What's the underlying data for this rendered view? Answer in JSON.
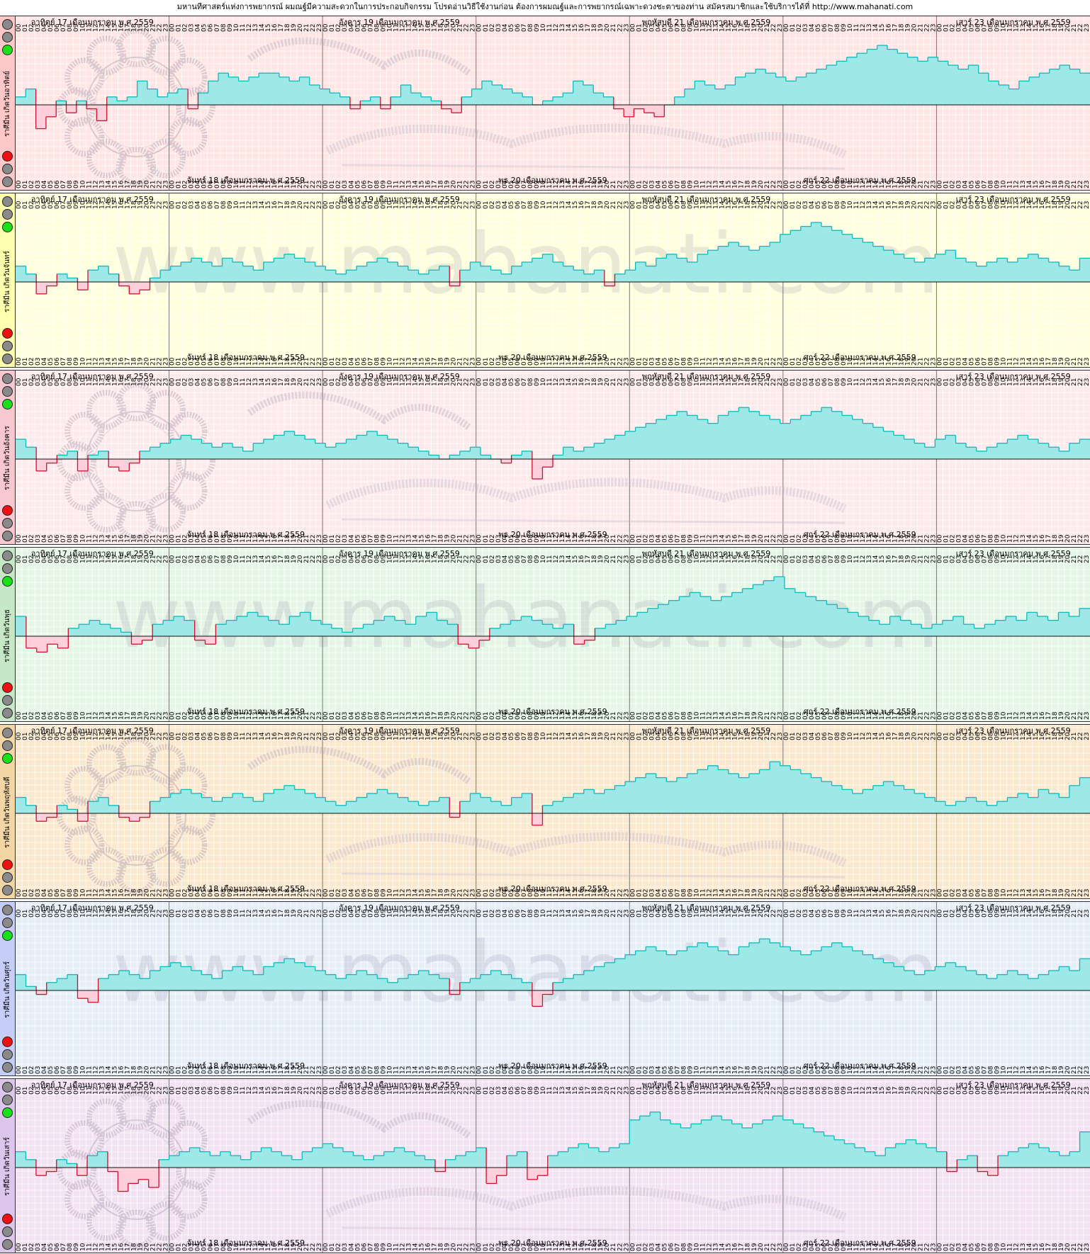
{
  "header": {
    "title": "มหานทีศาสตร์แห่งการพยากรณ์ ผมณฐ์มีความสะดวกในการประกอบกิจกรรม โปรดอ่านวิธีใช้งานก่อน ต้องการผมณฐ์และการพยากรณ์เฉพาะดวงชะตาของท่าน สมัครสมาชิกและใช้บริการได้ที่  http://www.mahanati.com"
  },
  "watermark": {
    "url_text": "www.mahanati.com"
  },
  "hour_labels": [
    "00",
    "01",
    "02",
    "03",
    "04",
    "05",
    "06",
    "07",
    "08",
    "09",
    "10",
    "11",
    "12",
    "13",
    "14",
    "15",
    "16",
    "17",
    "18",
    "19",
    "20",
    "21",
    "22",
    "23"
  ],
  "top_day_labels": [
    {
      "text": "อาทิตย์ 17 เดือนมกราคม พ.ศ.2559",
      "day": 0
    },
    {
      "text": "อังคาร 19 เดือนมกราคม พ.ศ.2559",
      "day": 2
    },
    {
      "text": "พฤหัสบดี 21 เดือนมกราคม พ.ศ.2559",
      "day": 4
    },
    {
      "text": "เสาร์ 23 เดือนมกราคม พ.ศ.2559",
      "day": 6
    }
  ],
  "bottom_day_labels": [
    {
      "text": "จันทร์ 18 เดือนมกราคม พ.ศ.2559",
      "day": 1
    },
    {
      "text": "พุธ 20 เดือนมกราคม พ.ศ.2559",
      "day": 3
    },
    {
      "text": "ศุกร์ 22 เดือนมกราคม พ.ศ.2559",
      "day": 5
    }
  ],
  "colors": {
    "positive_fill": "#9fe8e8",
    "positive_stroke": "#10b8b8",
    "negative_fill": "#ffd0dc",
    "negative_stroke": "#d01030",
    "grid": "#ffffff"
  },
  "chart_data": [
    {
      "type": "bar",
      "label": "ราศีมีน เกิดวันอาทิตย์",
      "bg": "#fde6e4",
      "tab": "#ffc8c8",
      "watermark": "seal",
      "x_unit": "hour",
      "days": 7,
      "values": [
        2,
        4,
        -6,
        -3,
        1,
        -2,
        1,
        -1,
        -4,
        2,
        1,
        2,
        6,
        4,
        2,
        3,
        4,
        -1,
        3,
        6,
        8,
        7,
        6,
        7,
        8,
        8,
        7,
        6,
        7,
        5,
        4,
        3,
        2,
        -1,
        1,
        2,
        -1,
        2,
        5,
        3,
        2,
        1,
        -1,
        -2,
        2,
        4,
        6,
        5,
        4,
        3,
        2,
        0,
        1,
        2,
        3,
        6,
        5,
        3,
        2,
        -1,
        -3,
        -1,
        -2,
        -3,
        0,
        2,
        4,
        6,
        5,
        4,
        5,
        7,
        8,
        9,
        8,
        7,
        6,
        7,
        8,
        9,
        10,
        11,
        12,
        13,
        14,
        15,
        14,
        13,
        12,
        11,
        12,
        11,
        10,
        9,
        10,
        8,
        6,
        5,
        4,
        6,
        7,
        8,
        9,
        10,
        9,
        8
      ]
    },
    {
      "type": "bar",
      "label": "ราศีมีน เกิดวันจันทร์",
      "bg": "#ffffde",
      "tab": "#ffffb0",
      "watermark": "url",
      "x_unit": "hour",
      "days": 7,
      "values": [
        4,
        2,
        -3,
        -1,
        2,
        1,
        -2,
        3,
        4,
        2,
        -1,
        -3,
        -2,
        1,
        3,
        4,
        5,
        6,
        5,
        4,
        6,
        5,
        4,
        3,
        5,
        6,
        7,
        6,
        5,
        4,
        3,
        2,
        3,
        4,
        5,
        6,
        5,
        4,
        3,
        2,
        3,
        4,
        -1,
        3,
        5,
        4,
        3,
        2,
        4,
        5,
        6,
        7,
        5,
        4,
        3,
        2,
        3,
        -1,
        2,
        3,
        5,
        4,
        6,
        7,
        6,
        5,
        7,
        8,
        9,
        10,
        9,
        8,
        9,
        10,
        12,
        13,
        14,
        15,
        14,
        13,
        12,
        11,
        10,
        9,
        8,
        7,
        6,
        5,
        6,
        7,
        8,
        6,
        5,
        4,
        5,
        6,
        5,
        6,
        7,
        6,
        5,
        4,
        3,
        6
      ]
    },
    {
      "type": "bar",
      "label": "ราศีมีน เกิดวันอังคาร",
      "bg": "#fdeaec",
      "tab": "#f8c8d0",
      "watermark": "seal",
      "x_unit": "hour",
      "days": 7,
      "values": [
        5,
        3,
        -3,
        -1,
        1,
        2,
        -3,
        1,
        2,
        -2,
        -3,
        -1,
        2,
        3,
        4,
        5,
        6,
        5,
        4,
        3,
        4,
        3,
        2,
        4,
        5,
        6,
        7,
        6,
        5,
        4,
        3,
        4,
        5,
        6,
        7,
        6,
        5,
        4,
        3,
        2,
        1,
        0,
        1,
        2,
        3,
        1,
        0,
        -1,
        1,
        2,
        -5,
        -2,
        1,
        3,
        2,
        3,
        4,
        5,
        6,
        7,
        8,
        9,
        10,
        11,
        12,
        11,
        10,
        9,
        11,
        12,
        13,
        12,
        11,
        10,
        9,
        10,
        11,
        12,
        13,
        12,
        11,
        10,
        9,
        8,
        7,
        6,
        5,
        4,
        3,
        5,
        6,
        4,
        3,
        2,
        3,
        4,
        5,
        6,
        5,
        4,
        3,
        2,
        4,
        5
      ]
    },
    {
      "type": "bar",
      "label": "ราศีมีน เกิดวันพุธ",
      "bg": "#e6f6e6",
      "tab": "#c6e8c6",
      "watermark": "url",
      "x_unit": "hour",
      "days": 7,
      "values": [
        5,
        -3,
        -4,
        -2,
        -3,
        2,
        3,
        4,
        3,
        2,
        1,
        -2,
        -1,
        3,
        4,
        5,
        4,
        -1,
        -2,
        3,
        4,
        5,
        6,
        5,
        4,
        3,
        5,
        6,
        4,
        3,
        2,
        1,
        2,
        3,
        4,
        5,
        4,
        3,
        5,
        6,
        4,
        3,
        -2,
        -3,
        -1,
        2,
        3,
        4,
        5,
        4,
        3,
        2,
        3,
        -2,
        -1,
        2,
        3,
        4,
        5,
        6,
        7,
        8,
        9,
        10,
        11,
        10,
        9,
        10,
        11,
        12,
        13,
        14,
        15,
        12,
        11,
        10,
        9,
        8,
        7,
        6,
        5,
        4,
        3,
        5,
        4,
        3,
        2,
        3,
        4,
        5,
        3,
        2,
        3,
        4,
        5,
        4,
        6,
        5,
        4,
        6,
        5,
        7
      ]
    },
    {
      "type": "bar",
      "label": "ราศีมีน เกิดวันพฤหัสบดี",
      "bg": "#fae8cf",
      "tab": "#f2d6a6",
      "watermark": "seal",
      "x_unit": "hour",
      "days": 7,
      "values": [
        4,
        2,
        -2,
        -1,
        2,
        1,
        -2,
        3,
        4,
        2,
        -1,
        -2,
        -1,
        3,
        4,
        5,
        6,
        5,
        4,
        3,
        4,
        5,
        4,
        3,
        5,
        6,
        7,
        6,
        5,
        4,
        3,
        2,
        3,
        4,
        5,
        6,
        5,
        4,
        3,
        2,
        3,
        4,
        -1,
        3,
        5,
        4,
        3,
        2,
        4,
        5,
        -3,
        2,
        3,
        4,
        5,
        6,
        5,
        6,
        7,
        8,
        9,
        10,
        9,
        8,
        9,
        10,
        11,
        12,
        11,
        10,
        9,
        10,
        11,
        13,
        12,
        11,
        10,
        9,
        8,
        7,
        6,
        5,
        6,
        7,
        8,
        7,
        6,
        5,
        4,
        3,
        2,
        3,
        4,
        3,
        2,
        3,
        4,
        5,
        4,
        6,
        5,
        4,
        7,
        9
      ]
    },
    {
      "type": "bar",
      "label": "ราศีมีน เกิดวันศุกร์",
      "bg": "#e6eef8",
      "tab": "#c6cef8",
      "watermark": "url",
      "x_unit": "hour",
      "days": 7,
      "values": [
        4,
        1,
        -1,
        2,
        3,
        4,
        -2,
        -3,
        3,
        4,
        5,
        4,
        3,
        5,
        6,
        7,
        6,
        5,
        4,
        3,
        5,
        6,
        5,
        4,
        6,
        7,
        8,
        7,
        6,
        5,
        4,
        3,
        4,
        5,
        4,
        3,
        2,
        3,
        4,
        5,
        4,
        3,
        -1,
        2,
        3,
        4,
        5,
        4,
        3,
        2,
        -4,
        -1,
        2,
        3,
        4,
        5,
        6,
        7,
        8,
        9,
        10,
        11,
        10,
        9,
        10,
        11,
        12,
        11,
        10,
        9,
        11,
        12,
        13,
        12,
        11,
        10,
        9,
        10,
        11,
        12,
        11,
        10,
        9,
        8,
        7,
        6,
        5,
        4,
        5,
        6,
        7,
        6,
        5,
        4,
        3,
        4,
        5,
        4,
        3,
        4,
        5,
        6,
        5,
        8
      ]
    },
    {
      "type": "bar",
      "label": "ราศีมีน เกิดวันเสาร์",
      "bg": "#f2e2f2",
      "tab": "#dcc6ec",
      "watermark": "seal",
      "x_unit": "hour",
      "days": 7,
      "values": [
        4,
        2,
        -2,
        -1,
        2,
        1,
        -2,
        3,
        4,
        -1,
        -6,
        -4,
        -3,
        -5,
        2,
        3,
        4,
        5,
        4,
        3,
        4,
        3,
        2,
        4,
        5,
        4,
        3,
        2,
        4,
        5,
        6,
        5,
        4,
        3,
        2,
        3,
        4,
        5,
        4,
        3,
        2,
        -1,
        2,
        3,
        4,
        5,
        -4,
        -2,
        3,
        4,
        -3,
        -2,
        3,
        4,
        5,
        6,
        5,
        4,
        5,
        6,
        12,
        13,
        14,
        12,
        11,
        10,
        11,
        12,
        13,
        12,
        11,
        10,
        11,
        12,
        13,
        12,
        11,
        10,
        9,
        8,
        7,
        6,
        5,
        4,
        3,
        5,
        6,
        7,
        6,
        5,
        4,
        -1,
        2,
        3,
        -1,
        -2,
        3,
        4,
        5,
        6,
        5,
        4,
        3,
        4,
        9
      ]
    }
  ]
}
